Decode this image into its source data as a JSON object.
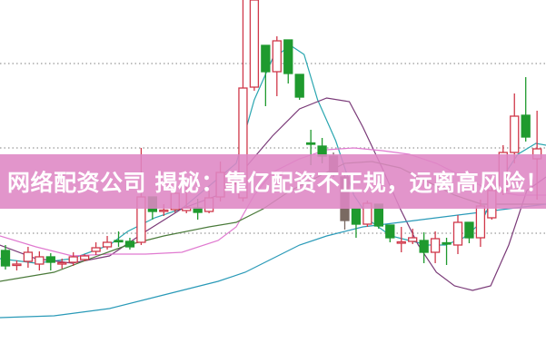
{
  "banner": {
    "title": "网络配资公司 揭秘：靠亿配资不正规，远离高风险！"
  },
  "colors": {
    "up": "#d0384a",
    "down": "#1f9a2e",
    "down_dark": "#7a6a62",
    "banner": "#de86c4",
    "grid": "#999999"
  },
  "chart_data": {
    "type": "candlestick",
    "title": "",
    "xlabel": "",
    "ylabel": "",
    "ylim": [
      0,
      40
    ],
    "xlim": [
      -0.5,
      47.8
    ],
    "grid": {
      "horizontal": true,
      "style": "dotted",
      "levels": [
        33.0,
        23.7,
        14.3
      ]
    },
    "candles": [
      {
        "o": 12.4,
        "h": 13.0,
        "l": 10.3,
        "c": 10.7
      },
      {
        "o": 10.9,
        "h": 11.3,
        "l": 10.2,
        "c": 10.9
      },
      {
        "o": 11.2,
        "h": 12.8,
        "l": 10.5,
        "c": 12.2
      },
      {
        "o": 10.9,
        "h": 12.3,
        "l": 10.2,
        "c": 11.7
      },
      {
        "o": 11.7,
        "h": 12.1,
        "l": 10.2,
        "c": 11.1
      },
      {
        "o": 11.0,
        "h": 11.5,
        "l": 10.4,
        "c": 11.05
      },
      {
        "o": 11.1,
        "h": 12.2,
        "l": 10.7,
        "c": 11.7
      },
      {
        "o": 11.4,
        "h": 12.0,
        "l": 11.2,
        "c": 11.8
      },
      {
        "o": 12.3,
        "h": 13.3,
        "l": 11.9,
        "c": 12.7
      },
      {
        "o": 12.8,
        "h": 14.0,
        "l": 12.5,
        "c": 13.3
      },
      {
        "o": 13.5,
        "h": 14.5,
        "l": 12.8,
        "c": 13.45
      },
      {
        "o": 13.4,
        "h": 13.8,
        "l": 12.5,
        "c": 12.8
      },
      {
        "o": 13.3,
        "h": 23.7,
        "l": 13.0,
        "c": 18.3
      },
      {
        "o": 18.3,
        "h": 18.3,
        "l": 15.8,
        "c": 16.7
      },
      {
        "o": 16.8,
        "h": 17.5,
        "l": 16.2,
        "c": 16.85
      },
      {
        "o": 16.9,
        "h": 19.0,
        "l": 16.6,
        "c": 18.7
      },
      {
        "o": 16.8,
        "h": 19.5,
        "l": 16.5,
        "c": 17.1
      },
      {
        "o": 17.1,
        "h": 18.1,
        "l": 15.8,
        "c": 16.6
      },
      {
        "o": 16.7,
        "h": 19.0,
        "l": 16.5,
        "c": 18.2
      },
      {
        "o": 18.3,
        "h": 22.2,
        "l": 17.8,
        "c": 21.0
      },
      {
        "o": 19.8,
        "h": 21.0,
        "l": 19.0,
        "c": 19.85
      },
      {
        "o": 18.2,
        "h": 40.0,
        "l": 17.8,
        "c": 30.3
      },
      {
        "o": 30.4,
        "h": 40.0,
        "l": 30.0,
        "c": 40.0
      },
      {
        "o": 35.0,
        "h": 35.0,
        "l": 28.3,
        "c": 32.1
      },
      {
        "o": 32.1,
        "h": 36.0,
        "l": 29.4,
        "c": 35.5
      },
      {
        "o": 35.6,
        "h": 35.6,
        "l": 30.8,
        "c": 31.9
      },
      {
        "o": 31.8,
        "h": 31.8,
        "l": 29.0,
        "c": 29.3
      },
      {
        "o": 24.25,
        "h": 25.7,
        "l": 21.8,
        "c": 24.2
      },
      {
        "o": 23.9,
        "h": 24.8,
        "l": 22.0,
        "c": 22.8
      },
      {
        "o": 22.8,
        "h": 23.2,
        "l": 20.5,
        "c": 21.0,
        "dark": true
      },
      {
        "o": 20.5,
        "h": 21.0,
        "l": 14.7,
        "c": 15.7,
        "dark": true
      },
      {
        "o": 17.0,
        "h": 17.0,
        "l": 13.8,
        "c": 15.3
      },
      {
        "o": 15.3,
        "h": 17.9,
        "l": 15.0,
        "c": 17.6
      },
      {
        "o": 17.5,
        "h": 17.5,
        "l": 14.8,
        "c": 15.1
      },
      {
        "o": 15.2,
        "h": 15.2,
        "l": 13.3,
        "c": 13.8
      },
      {
        "o": 13.3,
        "h": 15.0,
        "l": 12.2,
        "c": 13.35
      },
      {
        "o": 13.4,
        "h": 14.8,
        "l": 13.1,
        "c": 13.8
      },
      {
        "o": 13.5,
        "h": 14.4,
        "l": 11.0,
        "c": 12.2
      },
      {
        "o": 12.2,
        "h": 14.5,
        "l": 11.0,
        "c": 13.7
      },
      {
        "o": 13.25,
        "h": 13.8,
        "l": 10.8,
        "c": 13.2
      },
      {
        "o": 13.0,
        "h": 16.3,
        "l": 12.0,
        "c": 15.5
      },
      {
        "o": 15.5,
        "h": 15.5,
        "l": 13.2,
        "c": 13.8
      },
      {
        "o": 13.8,
        "h": 18.0,
        "l": 12.8,
        "c": 17.3
      },
      {
        "o": 16.0,
        "h": 20.5,
        "l": 15.8,
        "c": 19.0
      },
      {
        "o": 19.0,
        "h": 24.0,
        "l": 18.5,
        "c": 23.2
      },
      {
        "o": 23.2,
        "h": 29.7,
        "l": 22.0,
        "c": 27.2
      },
      {
        "o": 27.3,
        "h": 31.5,
        "l": 24.4,
        "c": 24.9
      },
      {
        "o": 22.5,
        "h": 27.8,
        "l": 18.0,
        "c": 23.6
      }
    ],
    "series": [
      {
        "color": "#2aa6b0",
        "points": [
          [
            -0.5,
            11.5
          ],
          [
            2.7,
            11.0
          ],
          [
            5.9,
            11.5
          ],
          [
            9.2,
            13.0
          ],
          [
            10.8,
            14.5
          ],
          [
            13.2,
            16.0
          ],
          [
            15.6,
            17.0
          ],
          [
            18,
            19.5
          ],
          [
            20.4,
            22.0
          ],
          [
            22,
            29.0
          ],
          [
            23.6,
            33.5
          ],
          [
            25.2,
            35.0
          ],
          [
            26.4,
            34.0
          ],
          [
            27.6,
            29.0
          ],
          [
            29.2,
            24.5
          ],
          [
            30.8,
            18.5
          ],
          [
            32.4,
            15.5
          ],
          [
            34.1,
            14.0
          ],
          [
            35.7,
            13.5
          ],
          [
            37.3,
            13.0
          ],
          [
            38.9,
            13.0
          ],
          [
            40.5,
            13.8
          ],
          [
            42.1,
            15.5
          ],
          [
            43.7,
            20.0
          ],
          [
            45.3,
            23.0
          ],
          [
            46.9,
            24.2
          ],
          [
            47.8,
            24.0
          ]
        ]
      },
      {
        "color": "#7a3a78",
        "points": [
          [
            -0.5,
            13.0
          ],
          [
            2.7,
            11.5
          ],
          [
            5.9,
            11.0
          ],
          [
            9.2,
            11.8
          ],
          [
            12.4,
            14.5
          ],
          [
            15.6,
            17.0
          ],
          [
            18.8,
            18.5
          ],
          [
            21.2,
            21.5
          ],
          [
            23.6,
            25.0
          ],
          [
            26,
            28.0
          ],
          [
            28.4,
            29.2
          ],
          [
            30.4,
            28.8
          ],
          [
            31.6,
            26.0
          ],
          [
            33.3,
            21.5
          ],
          [
            34.9,
            17.0
          ],
          [
            36.5,
            13.0
          ],
          [
            38.1,
            10.0
          ],
          [
            39.7,
            8.5
          ],
          [
            41.3,
            8.0
          ],
          [
            42.9,
            8.5
          ],
          [
            44.5,
            13.0
          ],
          [
            46.1,
            19.0
          ],
          [
            47.8,
            20.5
          ]
        ]
      },
      {
        "color": "#e07ad0",
        "points": [
          [
            -0.5,
            14.0
          ],
          [
            2.7,
            12.8
          ],
          [
            5.9,
            11.8
          ],
          [
            9.2,
            12.0
          ],
          [
            12.4,
            12.0
          ],
          [
            15.6,
            12.2
          ],
          [
            18.8,
            13.5
          ],
          [
            20.4,
            15.0
          ],
          [
            22,
            18.5
          ],
          [
            23.6,
            21.0
          ],
          [
            26,
            22.5
          ],
          [
            28.4,
            23.5
          ],
          [
            30.8,
            23.7
          ],
          [
            33.3,
            23.4
          ],
          [
            35.7,
            23.0
          ],
          [
            38.1,
            22.0
          ],
          [
            40.5,
            20.5
          ],
          [
            42.9,
            19.0
          ],
          [
            45.3,
            18.5
          ],
          [
            47.8,
            18.5
          ]
        ]
      },
      {
        "color": "#4a7a3a",
        "points": [
          [
            -0.5,
            9.0
          ],
          [
            4.3,
            10.0
          ],
          [
            7.5,
            11.5
          ],
          [
            10.8,
            13.0
          ],
          [
            14,
            14.0
          ],
          [
            18,
            15.0
          ],
          [
            20.4,
            15.5
          ],
          [
            22.8,
            17.0
          ],
          [
            25.2,
            19.0
          ],
          [
            27.6,
            20.5
          ],
          [
            30,
            22.0
          ],
          [
            32.4,
            22.2
          ],
          [
            34.9,
            21.5
          ],
          [
            37.3,
            20.0
          ],
          [
            39.7,
            18.5
          ],
          [
            42.1,
            17.5
          ],
          [
            44.5,
            17.5
          ],
          [
            47.8,
            17.5
          ]
        ]
      },
      {
        "color": "#2a9ab8",
        "points": [
          [
            -0.5,
            5.0
          ],
          [
            4.3,
            5.2
          ],
          [
            9.2,
            6.0
          ],
          [
            14,
            7.5
          ],
          [
            18.8,
            9.0
          ],
          [
            21.2,
            10.0
          ],
          [
            23.6,
            11.5
          ],
          [
            26,
            13.0
          ],
          [
            28.4,
            14.0
          ],
          [
            31.6,
            15.0
          ],
          [
            34.9,
            15.5
          ],
          [
            38.1,
            16.0
          ],
          [
            41.3,
            16.5
          ],
          [
            44.5,
            17.0
          ],
          [
            47.8,
            17.5
          ]
        ]
      }
    ]
  }
}
